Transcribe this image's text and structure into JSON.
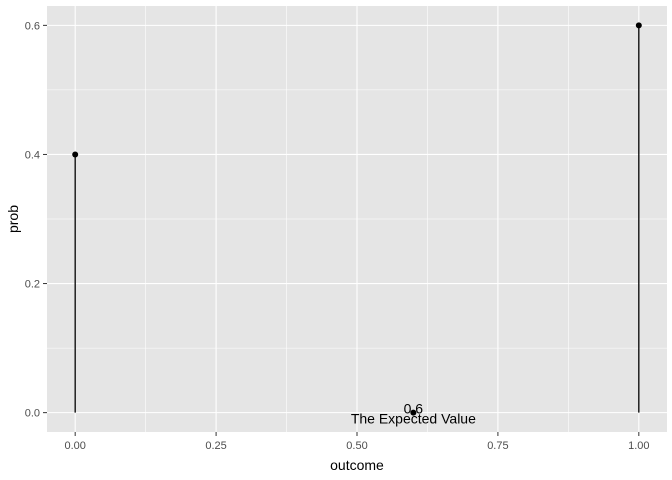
{
  "chart_data": {
    "type": "scatter",
    "xlabel": "outcome",
    "ylabel": "prob",
    "xlim": [
      -0.05,
      1.05
    ],
    "ylim": [
      -0.03,
      0.63
    ],
    "x_ticks": [
      0.0,
      0.25,
      0.5,
      0.75,
      1.0
    ],
    "x_tick_labels": [
      "0.00",
      "0.25",
      "0.50",
      "0.75",
      "1.00"
    ],
    "y_ticks": [
      0.0,
      0.2,
      0.4,
      0.6
    ],
    "y_tick_labels": [
      "0.0",
      "0.2",
      "0.4",
      "0.6"
    ],
    "grid": true,
    "points": [
      {
        "x": 0.0,
        "y": 0.4
      },
      {
        "x": 1.0,
        "y": 0.6
      }
    ],
    "stems": true,
    "expected_value": {
      "x": 0.6,
      "y": 0.0,
      "value_label": "0.6",
      "text": "The Expected Value"
    },
    "colors": {
      "panel": "#e5e5e5",
      "grid": "#ffffff",
      "marks": "#000000"
    }
  }
}
